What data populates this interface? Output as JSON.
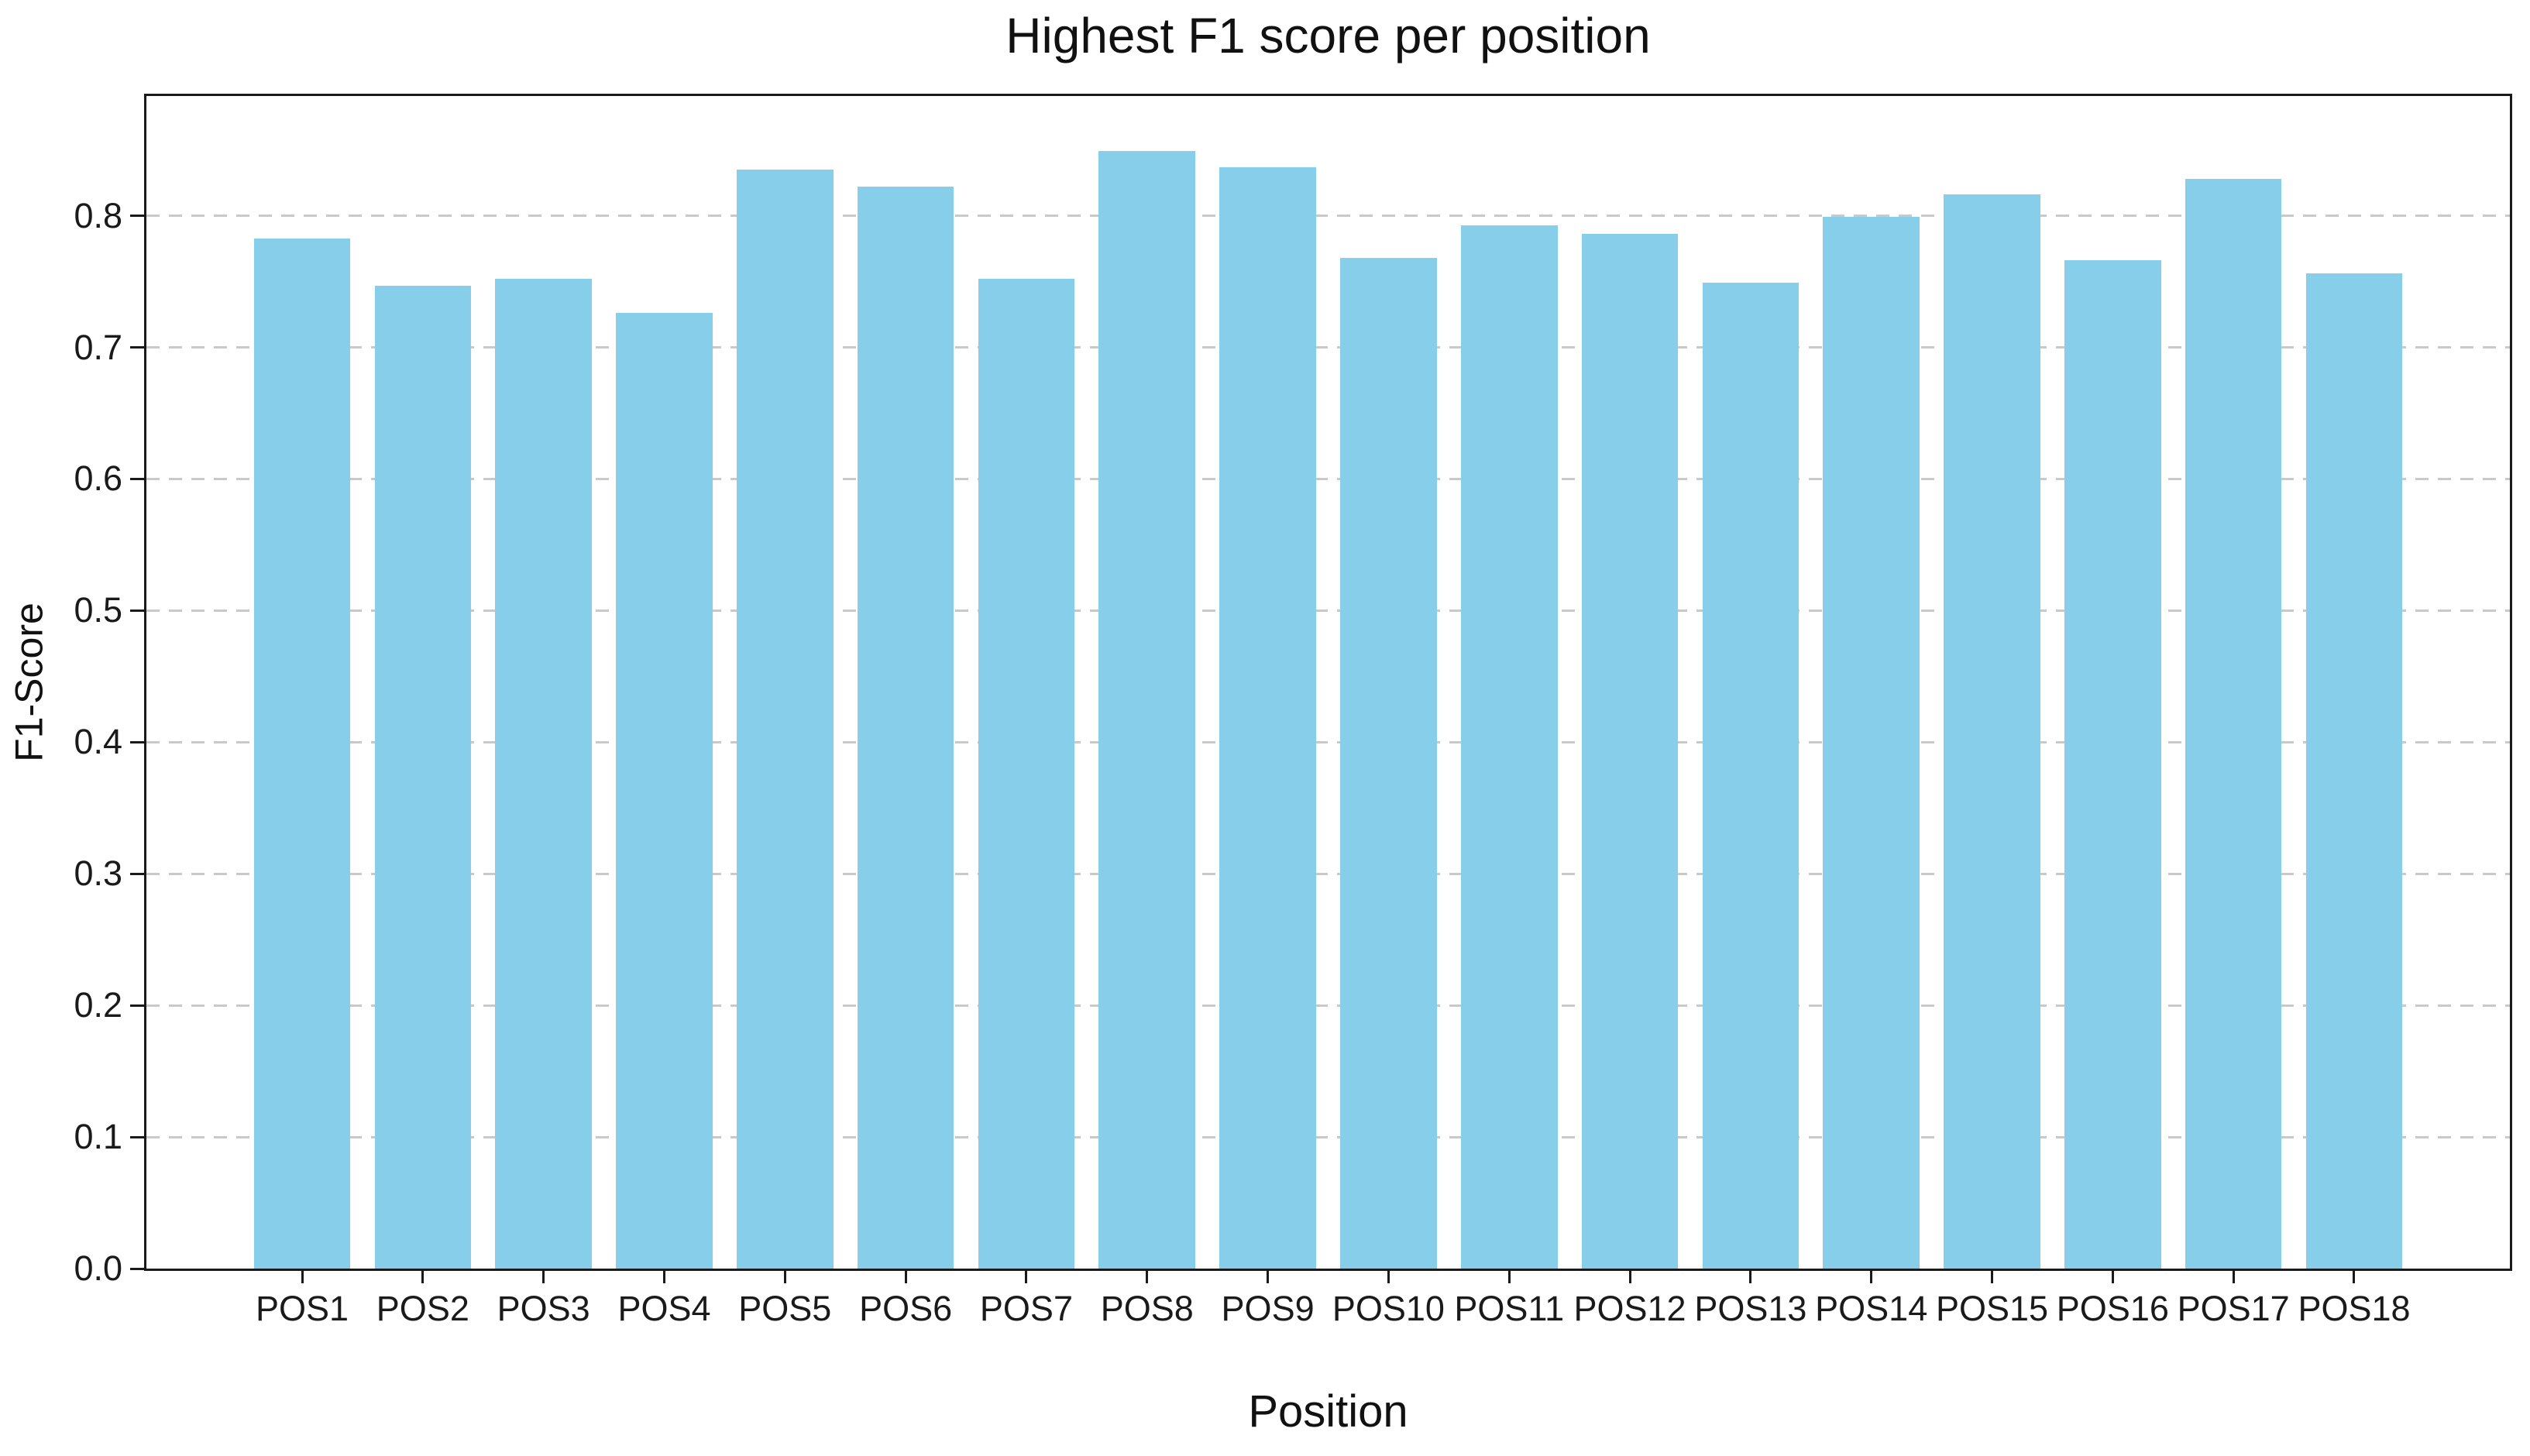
{
  "chart_data": {
    "type": "bar",
    "title": "Highest F1 score per position",
    "xlabel": "Position",
    "ylabel": "F1-Score",
    "categories": [
      "POS1",
      "POS2",
      "POS3",
      "POS4",
      "POS5",
      "POS6",
      "POS7",
      "POS8",
      "POS9",
      "POS10",
      "POS11",
      "POS12",
      "POS13",
      "POS14",
      "POS15",
      "POS16",
      "POS17",
      "POS18"
    ],
    "values": [
      0.783,
      0.747,
      0.752,
      0.726,
      0.835,
      0.822,
      0.752,
      0.849,
      0.837,
      0.768,
      0.793,
      0.786,
      0.749,
      0.799,
      0.816,
      0.766,
      0.828,
      0.756
    ],
    "ylim": [
      0,
      0.891
    ],
    "yticks": [
      0.0,
      0.1,
      0.2,
      0.3,
      0.4,
      0.5,
      0.6,
      0.7,
      0.8
    ],
    "ytick_labels": [
      "0.0",
      "0.1",
      "0.2",
      "0.3",
      "0.4",
      "0.5",
      "0.6",
      "0.7",
      "0.8"
    ],
    "grid": "horizontal-dashed",
    "legend": "none",
    "bar_color": "#87CEEB",
    "background_color": "#ffffff",
    "axis_color": "#1a1a1a",
    "grid_color": "#c9c9c9"
  }
}
